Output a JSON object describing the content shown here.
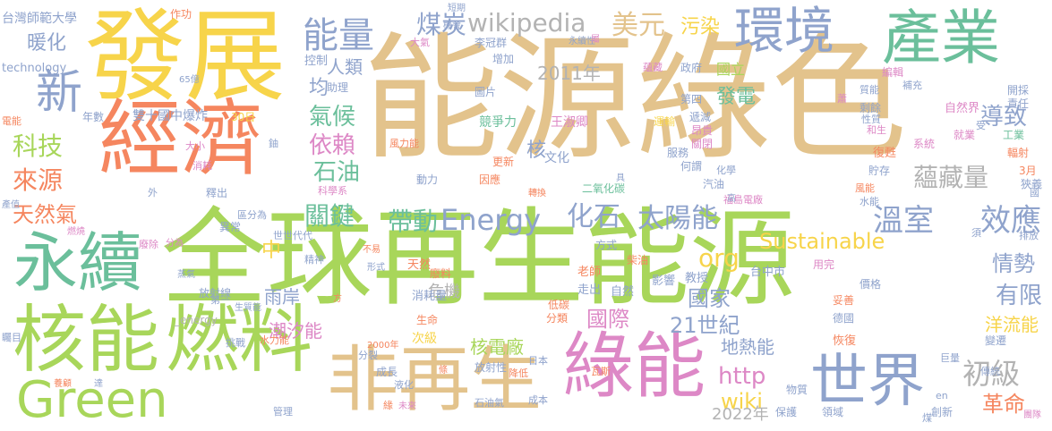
{
  "words": [
    {
      "text": "能源綠色",
      "color": "#e3c38c"
    },
    {
      "text": "全球再生能源",
      "color": "#a8d65a"
    },
    {
      "text": "發展",
      "color": "#f7d44a"
    },
    {
      "text": "經濟",
      "color": "#f5865f"
    },
    {
      "text": "永續",
      "color": "#6bbf9b"
    },
    {
      "text": "核能",
      "color": "#a8d65a"
    },
    {
      "text": "燃料",
      "color": "#a8d65a"
    },
    {
      "text": "Green",
      "color": "#a8d65a"
    },
    {
      "text": "非再生",
      "color": "#e3c38c"
    },
    {
      "text": "綠能",
      "color": "#dd88c6"
    },
    {
      "text": "世界",
      "color": "#8fa3cc"
    },
    {
      "text": "環境",
      "color": "#8fa3cc"
    },
    {
      "text": "產業",
      "color": "#6bbf9b"
    },
    {
      "text": "新",
      "color": "#8fa3cc"
    },
    {
      "text": "能量",
      "color": "#8fa3cc"
    },
    {
      "text": "煤炭",
      "color": "#8fa3cc"
    },
    {
      "text": "wikipedia",
      "color": "#b3b3b3"
    },
    {
      "text": "美元",
      "color": "#e3c38c"
    },
    {
      "text": "污染",
      "color": "#f7d44a"
    },
    {
      "text": "科技",
      "color": "#a8d65a"
    },
    {
      "text": "來源",
      "color": "#f5865f"
    },
    {
      "text": "暖化",
      "color": "#8fa3cc"
    },
    {
      "text": "天然氣",
      "color": "#f5865f"
    },
    {
      "text": "人類",
      "color": "#8fa3cc"
    },
    {
      "text": "氣候",
      "color": "#6bbf9b"
    },
    {
      "text": "依賴",
      "color": "#dd88c6"
    },
    {
      "text": "石油",
      "color": "#6bbf9b"
    },
    {
      "text": "關鍵",
      "color": "#6bbf9b"
    },
    {
      "text": "帶動",
      "color": "#6bbf9b"
    },
    {
      "text": "Energy",
      "color": "#8fa3cc"
    },
    {
      "text": "化石",
      "color": "#8fa3cc"
    },
    {
      "text": "太陽能",
      "color": "#8fa3cc"
    },
    {
      "text": "溫室",
      "color": "#8fa3cc"
    },
    {
      "text": "效應",
      "color": "#8fa3cc"
    },
    {
      "text": "蘊藏量",
      "color": "#b3b3b3"
    },
    {
      "text": "導致",
      "color": "#8fa3cc"
    },
    {
      "text": "發電",
      "color": "#6bbf9b"
    },
    {
      "text": "Sustainable",
      "color": "#f7d44a"
    },
    {
      "text": "org",
      "color": "#f7d44a"
    },
    {
      "text": "情勢",
      "color": "#8fa3cc"
    },
    {
      "text": "有限",
      "color": "#8fa3cc"
    },
    {
      "text": "國家",
      "color": "#8fa3cc"
    },
    {
      "text": "國際",
      "color": "#dd88c6"
    },
    {
      "text": "21世紀",
      "color": "#8fa3cc"
    },
    {
      "text": "http",
      "color": "#dd88c6"
    },
    {
      "text": "wiki",
      "color": "#f7d44a"
    },
    {
      "text": "初級",
      "color": "#b3b3b3"
    },
    {
      "text": "革命",
      "color": "#f5865f"
    },
    {
      "text": "核電廠",
      "color": "#a8d65a"
    },
    {
      "text": "地熱能",
      "color": "#8fa3cc"
    },
    {
      "text": "潮汐能",
      "color": "#dd88c6"
    },
    {
      "text": "洋流能",
      "color": "#f7d44a"
    },
    {
      "text": "2011年",
      "color": "#b3b3b3"
    },
    {
      "text": "2022年",
      "color": "#b3b3b3"
    },
    {
      "text": "均",
      "color": "#8fa3cc"
    },
    {
      "text": "核",
      "color": "#8fa3cc"
    },
    {
      "text": "中",
      "color": "#f7d44a"
    },
    {
      "text": "雨岸",
      "color": "#8fa3cc"
    },
    {
      "text": "危機",
      "color": "#b3b3b3"
    },
    {
      "text": "台灣師範大學",
      "color": "#8fa3cc"
    },
    {
      "text": "technology",
      "color": "#8fa3cc"
    },
    {
      "text": "作功",
      "color": "#f5865f"
    },
    {
      "text": "雙十國中爆炸",
      "color": "#8fa3cc"
    },
    {
      "text": "30日",
      "color": "#f7d44a"
    },
    {
      "text": "年數",
      "color": "#8fa3cc"
    },
    {
      "text": "電能",
      "color": "#f5865f"
    },
    {
      "text": "控制",
      "color": "#8fa3cc"
    },
    {
      "text": "助理",
      "color": "#8fa3cc"
    },
    {
      "text": "國立",
      "color": "#a8d65a"
    },
    {
      "text": "政府",
      "color": "#8fa3cc"
    },
    {
      "text": "李冠群",
      "color": "#8fa3cc"
    },
    {
      "text": "增加",
      "color": "#8fa3cc"
    },
    {
      "text": "圖片",
      "color": "#8fa3cc"
    },
    {
      "text": "第四",
      "color": "#8fa3cc"
    },
    {
      "text": "遞減",
      "color": "#8fa3cc"
    },
    {
      "text": "剩餘",
      "color": "#8fa3cc"
    },
    {
      "text": "自然界",
      "color": "#dd88c6"
    },
    {
      "text": "開採",
      "color": "#8fa3cc"
    },
    {
      "text": "責任",
      "color": "#8fa3cc"
    },
    {
      "text": "工業",
      "color": "#6bbf9b"
    },
    {
      "text": "就業",
      "color": "#dd88c6"
    },
    {
      "text": "系統",
      "color": "#dd88c6"
    },
    {
      "text": "復甦",
      "color": "#f5865f"
    },
    {
      "text": "貯存",
      "color": "#8fa3cc"
    },
    {
      "text": "輻射",
      "color": "#f5865f"
    },
    {
      "text": "3月",
      "color": "#f5865f"
    },
    {
      "text": "狹義",
      "color": "#8fa3cc"
    },
    {
      "text": "競爭力",
      "color": "#6bbf9b"
    },
    {
      "text": "王淑卿",
      "color": "#dd88c6"
    },
    {
      "text": "運輸",
      "color": "#f7d44a"
    },
    {
      "text": "昂貴",
      "color": "#dd88c6"
    },
    {
      "text": "關閉",
      "color": "#dd88c6"
    },
    {
      "text": "服務",
      "color": "#8fa3cc"
    },
    {
      "text": "何謂",
      "color": "#8fa3cc"
    },
    {
      "text": "文化",
      "color": "#8fa3cc"
    },
    {
      "text": "更新",
      "color": "#f5865f"
    },
    {
      "text": "因應",
      "color": "#f5865f"
    },
    {
      "text": "動力",
      "color": "#8fa3cc"
    },
    {
      "text": "風力能",
      "color": "#f5865f"
    },
    {
      "text": "科學系",
      "color": "#dd88c6"
    },
    {
      "text": "大小",
      "color": "#dd88c6"
    },
    {
      "text": "消耗",
      "color": "#dd88c6"
    },
    {
      "text": "釋出",
      "color": "#8fa3cc"
    },
    {
      "text": "區分為",
      "color": "#8fa3cc"
    },
    {
      "text": "異常",
      "color": "#8fa3cc"
    },
    {
      "text": "世世代代",
      "color": "#8fa3cc"
    },
    {
      "text": "形式",
      "color": "#8fa3cc"
    },
    {
      "text": "精神",
      "color": "#8fa3cc"
    },
    {
      "text": "放射線",
      "color": "#8fa3cc"
    },
    {
      "text": "第一",
      "color": "#8fa3cc"
    },
    {
      "text": "生質能",
      "color": "#8fa3cc"
    },
    {
      "text": "_energy",
      "color": "#b3b3b3"
    },
    {
      "text": "水力能",
      "color": "#f5865f"
    },
    {
      "text": "挑戰",
      "color": "#8fa3cc"
    },
    {
      "text": "分裂",
      "color": "#8fa3cc"
    },
    {
      "text": "2000年",
      "color": "#f5865f"
    },
    {
      "text": "成長",
      "color": "#8fa3cc"
    },
    {
      "text": "液化",
      "color": "#8fa3cc"
    },
    {
      "text": "管理",
      "color": "#8fa3cc"
    },
    {
      "text": "未來",
      "color": "#dd88c6"
    },
    {
      "text": "石油氣",
      "color": "#8fa3cc"
    },
    {
      "text": "成本",
      "color": "#8fa3cc"
    },
    {
      "text": "日本",
      "color": "#8fa3cc"
    },
    {
      "text": "降低",
      "color": "#f5865f"
    },
    {
      "text": "放射性",
      "color": "#8fa3cc"
    },
    {
      "text": "次級",
      "color": "#f7d44a"
    },
    {
      "text": "生命",
      "color": "#f5865f"
    },
    {
      "text": "消耗量",
      "color": "#8fa3cc"
    },
    {
      "text": "天然",
      "color": "#f5865f"
    },
    {
      "text": "廢料",
      "color": "#f5865f"
    },
    {
      "text": "老師",
      "color": "#f5865f"
    },
    {
      "text": "走出",
      "color": "#8fa3cc"
    },
    {
      "text": "低碳",
      "color": "#f5865f"
    },
    {
      "text": "分類",
      "color": "#f5865f"
    },
    {
      "text": "自然",
      "color": "#8fa3cc"
    },
    {
      "text": "教授",
      "color": "#8fa3cc"
    },
    {
      "text": "影響",
      "color": "#8fa3cc"
    },
    {
      "text": "瓦斯",
      "color": "#f5865f"
    },
    {
      "text": "物質",
      "color": "#8fa3cc"
    },
    {
      "text": "保護",
      "color": "#8fa3cc"
    },
    {
      "text": "領域",
      "color": "#8fa3cc"
    },
    {
      "text": "恢復",
      "color": "#f5865f"
    },
    {
      "text": "德國",
      "color": "#8fa3cc"
    },
    {
      "text": "妥善",
      "color": "#f5865f"
    },
    {
      "text": "價格",
      "color": "#8fa3cc"
    },
    {
      "text": "用完",
      "color": "#dd88c6"
    },
    {
      "text": "台中市",
      "color": "#8fa3cc"
    },
    {
      "text": "福島電廠",
      "color": "#dd88c6"
    },
    {
      "text": "二氧化碳",
      "color": "#6bbf9b"
    },
    {
      "text": "方式",
      "color": "#8fa3cc"
    },
    {
      "text": "柴油",
      "color": "#f5865f"
    },
    {
      "text": "汽油",
      "color": "#8fa3cc"
    },
    {
      "text": "化學",
      "color": "#8fa3cc"
    },
    {
      "text": "水能",
      "color": "#8fa3cc"
    },
    {
      "text": "風能",
      "color": "#f5865f"
    },
    {
      "text": "傳統",
      "color": "#8fa3cc"
    },
    {
      "text": "巨量",
      "color": "#8fa3cc"
    },
    {
      "text": "創新",
      "color": "#8fa3cc"
    },
    {
      "text": "變遷",
      "color": "#8fa3cc"
    },
    {
      "text": "排放",
      "color": "#8fa3cc"
    },
    {
      "text": "國",
      "color": "#8fa3cc"
    },
    {
      "text": "en",
      "color": "#8fa3cc"
    },
    {
      "text": "煤",
      "color": "#8fa3cc"
    },
    {
      "text": "受",
      "color": "#8fa3cc"
    },
    {
      "text": "須",
      "color": "#8fa3cc"
    },
    {
      "text": "短期",
      "color": "#8fa3cc"
    },
    {
      "text": "機會",
      "color": "#8fa3cc"
    },
    {
      "text": "大氣",
      "color": "#dd88c6"
    },
    {
      "text": "永續性",
      "color": "#8fa3cc"
    },
    {
      "text": "屬",
      "color": "#dd88c6"
    },
    {
      "text": "蘊藏",
      "color": "#dd88c6"
    },
    {
      "text": "補充",
      "color": "#8fa3cc"
    },
    {
      "text": "質能",
      "color": "#8fa3cc"
    },
    {
      "text": "和生",
      "color": "#dd88c6"
    },
    {
      "text": "性質",
      "color": "#8fa3cc"
    },
    {
      "text": "編輯",
      "color": "#dd88c6"
    },
    {
      "text": "蕭",
      "color": "#dd88c6"
    },
    {
      "text": "產值",
      "color": "#8fa3cc"
    },
    {
      "text": "燃燒",
      "color": "#dd88c6"
    },
    {
      "text": "廢除",
      "color": "#dd88c6"
    },
    {
      "text": "分為",
      "color": "#dd88c6"
    },
    {
      "text": "蒸氣",
      "color": "#8fa3cc"
    },
    {
      "text": "矚目",
      "color": "#8fa3cc"
    },
    {
      "text": "養顧",
      "color": "#f5865f"
    },
    {
      "text": "達",
      "color": "#8fa3cc"
    },
    {
      "text": "鈾",
      "color": "#8fa3cc"
    },
    {
      "text": "不易",
      "color": "#f5865f"
    },
    {
      "text": "外",
      "color": "#8fa3cc"
    },
    {
      "text": "轉換",
      "color": "#f5865f"
    },
    {
      "text": "具",
      "color": "#8fa3cc"
    },
    {
      "text": "高",
      "color": "#8fa3cc"
    },
    {
      "text": "條",
      "color": "#f5865f"
    },
    {
      "text": "緣",
      "color": "#f5865f"
    },
    {
      "text": "方",
      "color": "#f5865f"
    },
    {
      "text": "65億",
      "color": "#8fa3cc"
    },
    {
      "text": "團隊",
      "color": "#dd88c6"
    }
  ]
}
